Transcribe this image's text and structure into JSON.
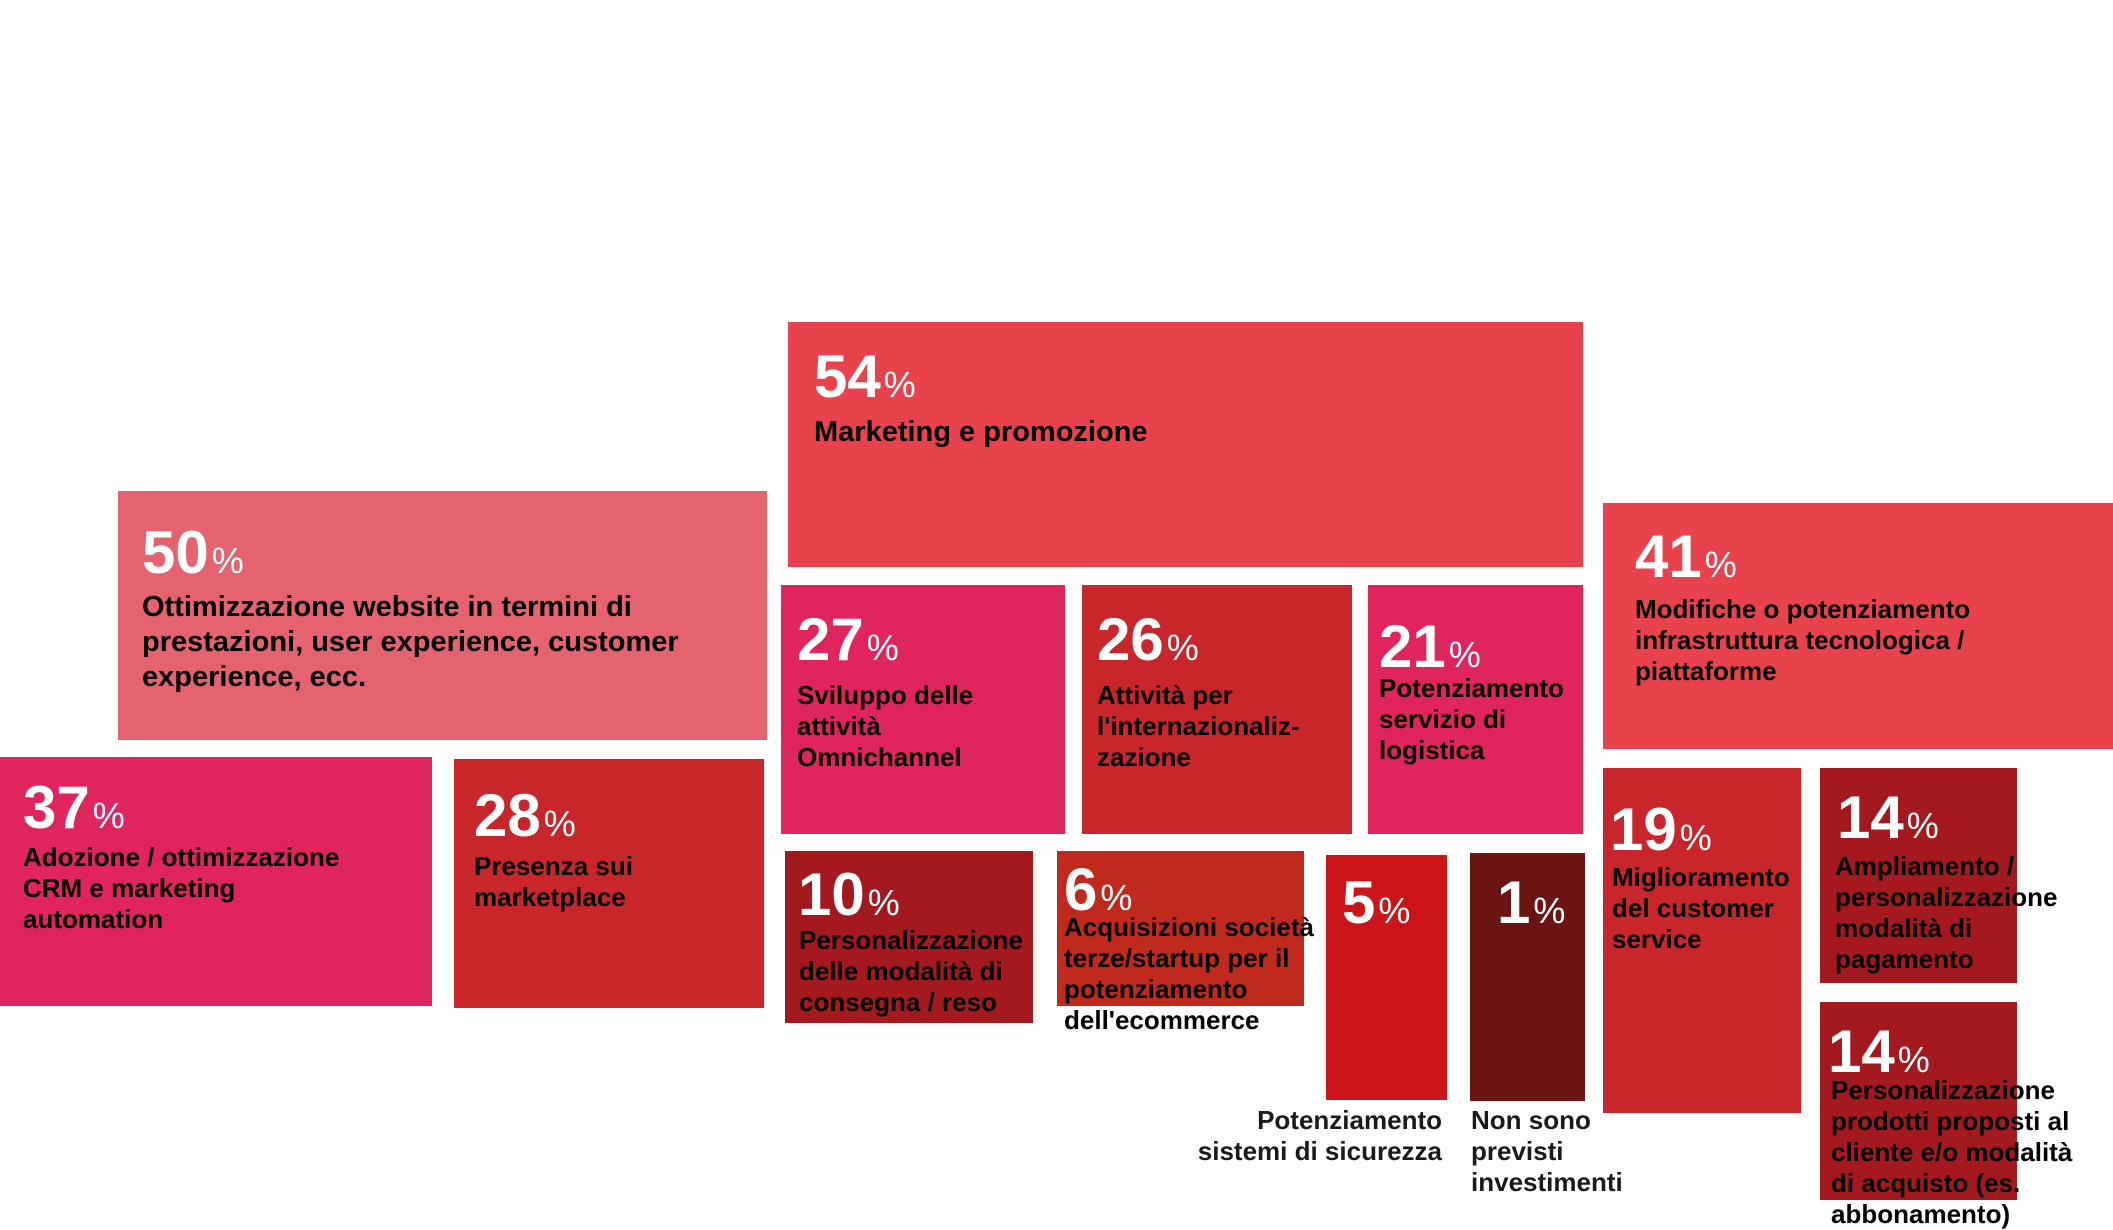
{
  "chart_data": {
    "type": "treemap",
    "unit": "%",
    "items": [
      {
        "value": 54,
        "label": "Marketing e promozione",
        "color": "#e8434c"
      },
      {
        "value": 50,
        "label": "Ottimizzazione website in termini di\nprestazioni, user experience, customer\nexperience, ecc.",
        "color": "#e4636e"
      },
      {
        "value": 41,
        "label": "Modifiche o potenziamento\ninfrastruttura tecnologica /\npiattaforme",
        "color": "#e8434c"
      },
      {
        "value": 37,
        "label": "Adozione / ottimizzazione\nCRM e marketing\nautomation",
        "color": "#e0255e"
      },
      {
        "value": 28,
        "label": "Presenza sui\nmarketplace",
        "color": "#c8262b"
      },
      {
        "value": 27,
        "label": "Sviluppo delle\nattività\nOmnichannel",
        "color": "#e0255e"
      },
      {
        "value": 26,
        "label": "Attività per\nl'internazionaliz-\nzazione",
        "color": "#c8262b"
      },
      {
        "value": 21,
        "label": "Potenziamento\nservizio di\nlogistica",
        "color": "#e0255e"
      },
      {
        "value": 19,
        "label": "Miglioramento\ndel customer\nservice",
        "color": "#c8262b"
      },
      {
        "value": 14,
        "label": "Ampliamento /\npersonalizzazione\nmodalità di\npagamento",
        "color": "#a3191d"
      },
      {
        "value": 14,
        "label": "Personalizzazione\nprodotti proposti al\ncliente e/o modalità\ndi acquisto (es.\nabbonamento)",
        "color": "#a3191d"
      },
      {
        "value": 10,
        "label": "Personalizzazione\ndelle modalità di\nconsegna / reso",
        "color": "#a3191d"
      },
      {
        "value": 6,
        "label": "Acquisizioni società\nterze/startup per il\npotenziamento\ndell'ecommerce",
        "color": "#bf2a1c"
      },
      {
        "value": 5,
        "label": "Potenziamento\nsistemi di sicurezza",
        "color": "#cc1518"
      },
      {
        "value": 1,
        "label": "Non sono\nprevisti\ninvestimenti",
        "color": "#6c1412"
      }
    ]
  }
}
